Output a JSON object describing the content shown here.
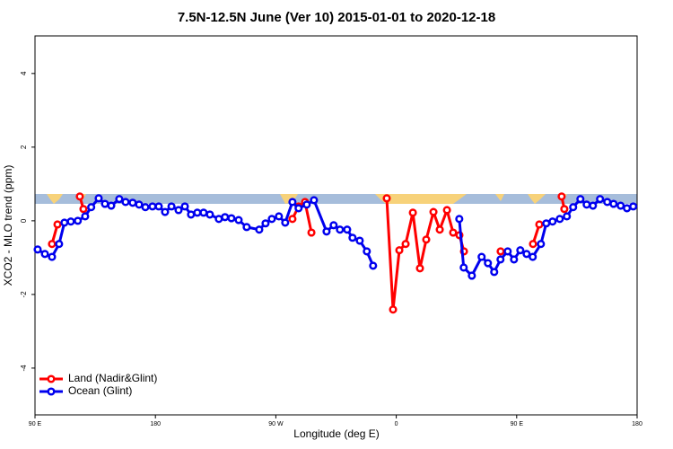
{
  "chart_data": {
    "type": "line",
    "title": "7.5N-12.5N June (Ver 10)   2015-01-01 to 2020-12-18",
    "x_label": "Longitude (deg E)",
    "y_label": "XCO2 - MLO trend (ppm)",
    "xlim": [
      90,
      540
    ],
    "ylim": [
      -5.27,
      5.02
    ],
    "xticks": [
      {
        "value": 90,
        "label": "90 E"
      },
      180,
      {
        "value": 270,
        "label": "90 W"
      },
      {
        "value": 360,
        "label": "0"
      },
      {
        "value": 450,
        "label": "90 E"
      },
      {
        "value": 540,
        "label": "180"
      }
    ],
    "yticks": [
      -4,
      -2,
      0,
      2,
      4
    ],
    "legend": "bottomleft",
    "series": [
      {
        "name": "Land (Nadir&Glint)",
        "color": "#ff0000",
        "x": [
          102.7,
          106.8,
          null,
          123.5,
          126.2,
          null,
          282.4,
          287,
          291.8,
          296.6,
          null,
          352.9,
          357.6,
          362.3,
          367,
          372.4,
          377.7,
          382.4,
          387.8,
          392.5,
          397.9,
          402.5,
          407.2,
          410.6,
          null,
          438,
          null,
          462.2,
          466.9,
          null,
          483.6,
          485.6
        ],
        "values": [
          -0.63,
          -0.1,
          null,
          0.66,
          0.32,
          null,
          0.05,
          0.39,
          0.51,
          -0.32,
          null,
          0.61,
          -2.41,
          -0.8,
          -0.63,
          0.22,
          -1.29,
          -0.51,
          0.24,
          -0.24,
          0.29,
          -0.32,
          -0.39,
          -0.83,
          null,
          -0.83,
          null,
          -0.63,
          -0.1,
          null,
          0.66,
          0.32
        ]
      },
      {
        "name": "Ocean (Glint)",
        "color": "#0000ee",
        "x": [
          92,
          97.4,
          102.7,
          108,
          112,
          116.8,
          122,
          127.5,
          132,
          137.6,
          142.3,
          147,
          153,
          157.7,
          163,
          167.8,
          172.5,
          177.8,
          182.5,
          187.2,
          192,
          197.3,
          202,
          206.6,
          211.3,
          216,
          220.7,
          227.4,
          232,
          236.8,
          242.2,
          248.2,
          257.6,
          262.3,
          267,
          272.3,
          277,
          282.4,
          287,
          293.1,
          298.5,
          307.9,
          313.2,
          317.9,
          323.3,
          327.3,
          332.7,
          338,
          342.7,
          null,
          407.1,
          410.4,
          416.5,
          423.8,
          428.5,
          433.2,
          437.9,
          443.3,
          448,
          452.7,
          457.4,
          462,
          468.1,
          472.1,
          476.8,
          482.2,
          487.5,
          492.2,
          497.6,
          502.3,
          507,
          512.3,
          517.7,
          522.4,
          527.7,
          532.4,
          537.1
        ],
        "values": [
          -0.78,
          -0.9,
          -0.98,
          -0.63,
          -0.05,
          -0.02,
          0,
          0.12,
          0.37,
          0.61,
          0.46,
          0.41,
          0.59,
          0.51,
          0.49,
          0.44,
          0.37,
          0.39,
          0.39,
          0.24,
          0.39,
          0.29,
          0.39,
          0.17,
          0.22,
          0.22,
          0.17,
          0.05,
          0.1,
          0.07,
          0.02,
          -0.17,
          -0.24,
          -0.07,
          0.05,
          0.12,
          -0.05,
          0.51,
          0.34,
          0.44,
          0.56,
          -0.29,
          -0.12,
          -0.24,
          -0.24,
          -0.46,
          -0.54,
          -0.83,
          -1.22,
          null,
          0.05,
          -1.27,
          -1.49,
          -0.98,
          -1.15,
          -1.39,
          -1.05,
          -0.83,
          -1.05,
          -0.8,
          -0.9,
          -0.98,
          -0.63,
          -0.07,
          -0.02,
          0.05,
          0.12,
          0.37,
          0.59,
          0.44,
          0.41,
          0.59,
          0.51,
          0.46,
          0.41,
          0.34,
          0.39
        ]
      }
    ]
  }
}
